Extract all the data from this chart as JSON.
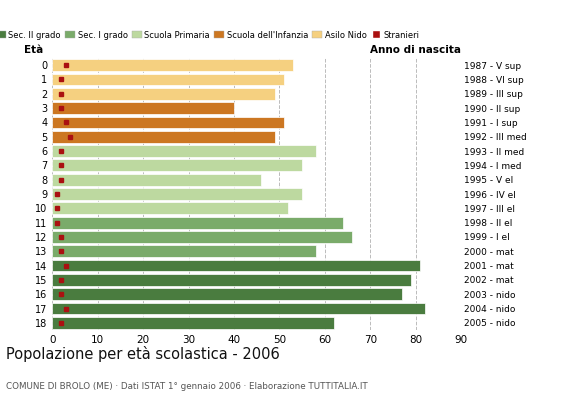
{
  "ages": [
    18,
    17,
    16,
    15,
    14,
    13,
    12,
    11,
    10,
    9,
    8,
    7,
    6,
    5,
    4,
    3,
    2,
    1,
    0
  ],
  "years": [
    "1987 - V sup",
    "1988 - VI sup",
    "1989 - III sup",
    "1990 - II sup",
    "1991 - I sup",
    "1992 - III med",
    "1993 - II med",
    "1994 - I med",
    "1995 - V el",
    "1996 - IV el",
    "1997 - III el",
    "1998 - II el",
    "1999 - I el",
    "2000 - mat",
    "2001 - mat",
    "2002 - mat",
    "2003 - nido",
    "2004 - nido",
    "2005 - nido"
  ],
  "values": [
    62,
    82,
    77,
    79,
    81,
    58,
    66,
    64,
    52,
    55,
    46,
    55,
    58,
    49,
    51,
    40,
    49,
    51,
    53
  ],
  "stranieri": [
    2,
    3,
    2,
    2,
    3,
    2,
    2,
    1,
    1,
    1,
    2,
    2,
    2,
    4,
    3,
    2,
    2,
    2,
    3
  ],
  "bar_colors": [
    "#4a7c3f",
    "#4a7c3f",
    "#4a7c3f",
    "#4a7c3f",
    "#4a7c3f",
    "#7aab6a",
    "#7aab6a",
    "#7aab6a",
    "#bdd9a0",
    "#bdd9a0",
    "#bdd9a0",
    "#bdd9a0",
    "#bdd9a0",
    "#cc7722",
    "#cc7722",
    "#cc7722",
    "#f5d080",
    "#f5d080",
    "#f5d080"
  ],
  "stranieri_color": "#aa1111",
  "bg_color": "#ffffff",
  "grid_color": "#bbbbbb",
  "title": "Popolazione per età scolastica - 2006",
  "subtitle": "COMUNE DI BROLO (ME) · Dati ISTAT 1° gennaio 2006 · Elaborazione TUTTITALIA.IT",
  "ylabel_left": "Età",
  "ylabel_right": "Anno di nascita",
  "xlim": [
    0,
    90
  ],
  "xticks": [
    0,
    10,
    20,
    30,
    40,
    50,
    60,
    70,
    80,
    90
  ],
  "legend_labels": [
    "Sec. II grado",
    "Sec. I grado",
    "Scuola Primaria",
    "Scuola dell'Infanzia",
    "Asilo Nido",
    "Stranieri"
  ],
  "legend_colors": [
    "#4a7c3f",
    "#7aab6a",
    "#bdd9a0",
    "#cc7722",
    "#f5d080",
    "#aa1111"
  ]
}
